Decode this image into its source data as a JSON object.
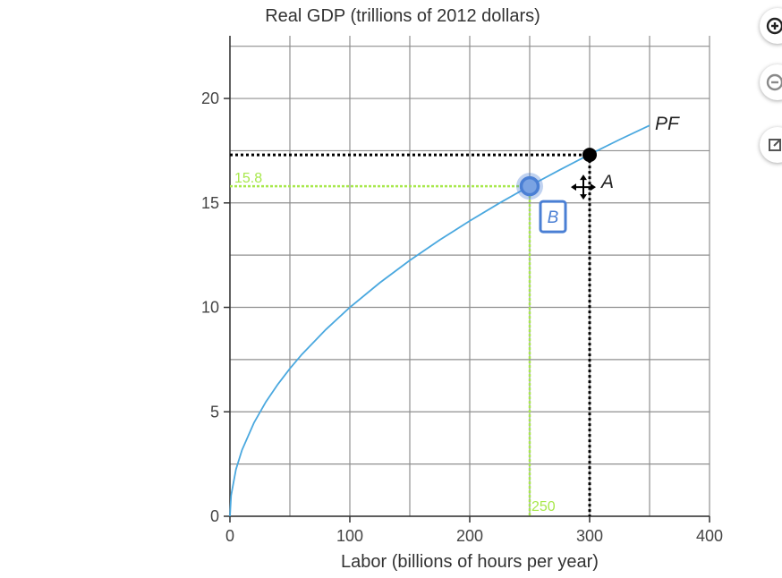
{
  "chart_data": {
    "type": "line",
    "ylabel": "Real GDP (trillions of 2012 dollars)",
    "xlabel": "Labor (billions of hours per year)",
    "xlim": [
      0,
      400
    ],
    "ylim": [
      0,
      23
    ],
    "grid": true,
    "x_ticks": [
      {
        "value": 0,
        "label": "0"
      },
      {
        "value": 100,
        "label": "100"
      },
      {
        "value": 200,
        "label": "200"
      },
      {
        "value": 300,
        "label": "300"
      },
      {
        "value": 400,
        "label": "400"
      }
    ],
    "y_ticks": [
      {
        "value": 0,
        "label": "0"
      },
      {
        "value": 5,
        "label": "5"
      },
      {
        "value": 10,
        "label": "10"
      },
      {
        "value": 15,
        "label": "15"
      },
      {
        "value": 20,
        "label": "20"
      }
    ],
    "series": [
      {
        "name": "PF",
        "color": "#4aa8df",
        "x": [
          0,
          1,
          5,
          10,
          20,
          30,
          40,
          50,
          60,
          80,
          100,
          125,
          150,
          175,
          200,
          225,
          250,
          275,
          300,
          325,
          350
        ],
        "y": [
          0,
          1.0,
          2.24,
          3.16,
          4.47,
          5.48,
          6.32,
          7.07,
          7.75,
          8.94,
          10.0,
          11.18,
          12.25,
          13.23,
          14.14,
          15.0,
          15.81,
          16.58,
          17.32,
          18.03,
          18.71
        ]
      }
    ],
    "points": [
      {
        "name": "A",
        "label": "A",
        "x": 300,
        "y": 17.3,
        "color": "#000000",
        "guide_color": "#000000"
      },
      {
        "name": "B",
        "label": "B",
        "x": 250,
        "y": 15.8,
        "color": "#4a7fd4",
        "guide_color": "#a8e84c",
        "x_value_label": "250",
        "y_value_label": "15.8"
      }
    ]
  },
  "toolbar": {
    "zoom_in_icon": "plus-circle-icon",
    "zoom_out_icon": "minus-circle-icon",
    "popout_icon": "open-external-icon"
  }
}
